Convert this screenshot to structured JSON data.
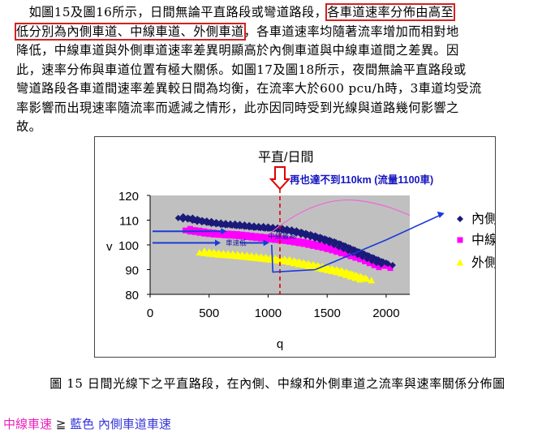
{
  "paragraph": {
    "lines": [
      [
        "　如圖15及圖16所示，日間無論平直路段或彎道路段，",
        "各車道速率分佈由高至",
        ""
      ],
      [
        "",
        "低分別為內側車道、中線車道、外側車道",
        "，各車道速率均隨著流率增加而相對地"
      ],
      [
        "降低，中線車道與外側車道速率差異明顯高於內側車道與中線車道間之差異。因",
        "",
        ""
      ],
      [
        "此，速率分佈與車道位置有極大關係。如圖17及圖18所示，夜間無論平直路段或",
        "",
        ""
      ],
      [
        "彎道路段各車道間速率差異較日間為均衡，在流率大於600 pcu/h時，3車道均受流",
        "",
        ""
      ],
      [
        "率影響而出現速率隨流率而遞減之情形，此亦因同時受到光線與道路幾何影響之",
        "",
        ""
      ],
      [
        "故。",
        "",
        ""
      ]
    ]
  },
  "chart_data": {
    "type": "scatter",
    "title": "平直/日間",
    "xlabel": "q",
    "ylabel": "v",
    "xlim": [
      0,
      2200
    ],
    "ylim": [
      80,
      120
    ],
    "xticks": [
      0,
      500,
      1000,
      1500,
      2000
    ],
    "yticks": [
      80,
      90,
      100,
      110,
      120
    ],
    "plot_background": "#c0c0c0",
    "grid": false,
    "legend_position": "right",
    "series": [
      {
        "name": "內側",
        "color": "#1a1a7a",
        "marker": "diamond",
        "x": [
          280,
          320,
          360,
          400,
          440,
          480,
          520,
          560,
          600,
          640,
          680,
          720,
          760,
          800,
          840,
          880,
          920,
          960,
          1000,
          1040,
          1080,
          1120,
          1160,
          1200,
          1240,
          1280,
          1320,
          1360,
          1400,
          1440,
          1480,
          1520,
          1560,
          1600,
          1640,
          1680,
          1720,
          1760,
          1800,
          1840,
          1880,
          1920,
          1960,
          2000
        ],
        "y": [
          111.5,
          111,
          111,
          110.5,
          110,
          109.8,
          109.6,
          109.2,
          109,
          108.8,
          108.6,
          108.6,
          108.4,
          108.2,
          108,
          107.8,
          107.6,
          107.6,
          107.4,
          107.2,
          107,
          106.8,
          106.5,
          106.2,
          105.8,
          105.3,
          104.8,
          104.3,
          103.8,
          103.2,
          102.6,
          102,
          101.4,
          100.6,
          99.8,
          99,
          98.2,
          97.4,
          96.6,
          95.8,
          95,
          94.2,
          93.4,
          92.8
        ]
      },
      {
        "name": "中線",
        "color": "#ff00ff",
        "marker": "square",
        "x": [
          340,
          380,
          420,
          460,
          500,
          540,
          580,
          620,
          660,
          700,
          740,
          780,
          820,
          860,
          900,
          940,
          980,
          1020,
          1060,
          1100,
          1140,
          1180,
          1220,
          1260,
          1300,
          1340,
          1380,
          1420,
          1460,
          1500,
          1540,
          1580,
          1620,
          1660,
          1700,
          1740,
          1780,
          1820,
          1860,
          1900,
          1940,
          1980
        ],
        "y": [
          106.5,
          106,
          105.8,
          105.5,
          105.2,
          105,
          104.8,
          104.7,
          104.6,
          104.5,
          104.4,
          104.2,
          104,
          103.8,
          103.6,
          103.4,
          103.2,
          103,
          102.8,
          102.6,
          102.4,
          102.2,
          101.9,
          101.6,
          101.3,
          101,
          100.6,
          100.2,
          99.8,
          99.4,
          98.9,
          98.4,
          97.8,
          97.2,
          96.6,
          96,
          95.4,
          94.8,
          94,
          93.2,
          92.4,
          91.6
        ]
      },
      {
        "name": "外側",
        "color": "#ffff00",
        "marker": "triangle",
        "x": [
          460,
          500,
          540,
          580,
          620,
          660,
          700,
          740,
          780,
          820,
          860,
          900,
          940,
          980,
          1020,
          1060,
          1100,
          1140,
          1180,
          1220,
          1260,
          1300,
          1340,
          1380,
          1420,
          1460,
          1500,
          1540,
          1580,
          1620,
          1660,
          1700,
          1740,
          1780,
          1820
        ],
        "y": [
          97.5,
          97.2,
          97,
          96.8,
          96.6,
          96.5,
          96.4,
          96.2,
          96,
          95.8,
          95.6,
          95.4,
          95.2,
          95,
          94.8,
          94.6,
          94.4,
          94.2,
          94,
          93.6,
          93.2,
          92.8,
          92.4,
          92,
          91.6,
          91.2,
          90.8,
          90.4,
          90,
          89.6,
          89,
          88.4,
          87.8,
          87.2,
          86.6
        ]
      }
    ],
    "annotations": {
      "arrow_text": "再也達不到110km  (流量1100車)",
      "blue_label_1": "車速低",
      "blue_label_2": "中線最高"
    }
  },
  "caption": "圖 15  日間光線下之平直路段，在內側、中線和外側車道之流率與速率關係分佈圖",
  "footer": {
    "part1": "中線車速",
    "part2": "≧",
    "part3": "藍色 內側車道車速"
  }
}
